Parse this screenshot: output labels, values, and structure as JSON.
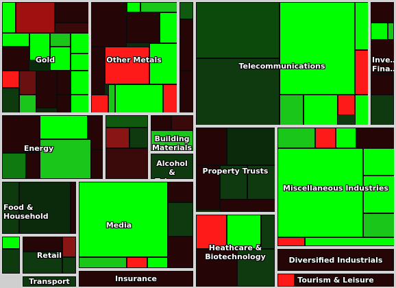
{
  "chart_data": {
    "type": "heatmap",
    "palette": {
      "strong_up": "#00ff00",
      "up": "#19c619",
      "mild_up": "#0f7a0f",
      "flat": "#0f3a0f",
      "mild_down": "#2a0606",
      "down": "#8a1515",
      "strong_down": "#ff1a1a",
      "dark_neutral": "#250505"
    },
    "sectors": [
      {
        "name": "Gold",
        "label": "Gold",
        "weight": 4.2,
        "tone": "mixed"
      },
      {
        "name": "Other Metals",
        "label": "Other Metals",
        "weight": 4.0,
        "tone": "mixed"
      },
      {
        "name": "Telecommunications",
        "label": "Telecommunications",
        "weight": 7.0,
        "tone": "up"
      },
      {
        "name": "Investment & Financial",
        "label": "Inve…\nFina…",
        "weight": 1.0,
        "tone": "dark"
      },
      {
        "name": "Energy",
        "label": "Energy",
        "weight": 2.8,
        "tone": "up"
      },
      {
        "name": "Building Materials",
        "label": "Building\nMaterials",
        "weight": 0.6,
        "tone": "mixed"
      },
      {
        "name": "Alcohol & Tobacco",
        "label": "Alcohol\n& Tobacco",
        "weight": 0.5,
        "tone": "dark"
      },
      {
        "name": "Property Trusts",
        "label": "Property Trusts",
        "weight": 3.0,
        "tone": "dark"
      },
      {
        "name": "Miscellaneous Industries",
        "label": "Miscellaneous Industries",
        "weight": 4.5,
        "tone": "up"
      },
      {
        "name": "Food & Household",
        "label": "Food & Household",
        "weight": 1.6,
        "tone": "dark"
      },
      {
        "name": "Media",
        "label": "Media",
        "weight": 4.2,
        "tone": "up"
      },
      {
        "name": "Retail",
        "label": "Retail",
        "weight": 1.1,
        "tone": "dark"
      },
      {
        "name": "Transport",
        "label": "Transport",
        "weight": 0.5,
        "tone": "dark"
      },
      {
        "name": "Insurance",
        "label": "Insurance",
        "weight": 0.9,
        "tone": "dark"
      },
      {
        "name": "Healthcare & Biotechnology",
        "label": "Heathcare &\nBiotechnology",
        "weight": 2.0,
        "tone": "mixed"
      },
      {
        "name": "Diversified Industrials",
        "label": "Diversified Industrials",
        "weight": 1.2,
        "tone": "dark"
      },
      {
        "name": "Tourism & Leisure",
        "label": "Tourism & Leisure",
        "weight": 0.6,
        "tone": "dark"
      }
    ]
  }
}
